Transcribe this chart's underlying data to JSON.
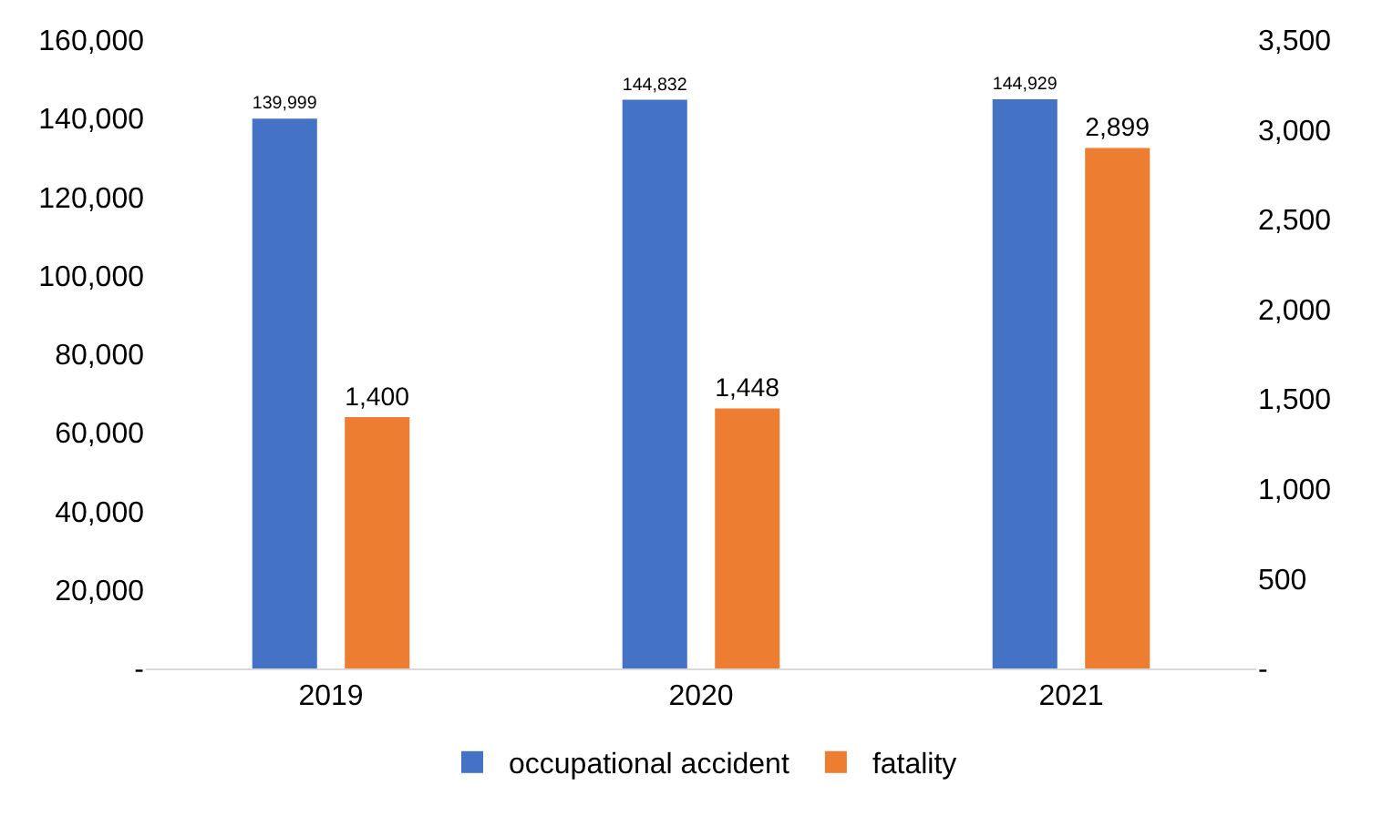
{
  "chart_data": {
    "type": "bar",
    "categories": [
      "2019",
      "2020",
      "2021"
    ],
    "series": [
      {
        "name": "occupational accident",
        "color": "#4472c4",
        "values": [
          139999,
          144832,
          144929
        ],
        "value_labels": [
          "139,999",
          "144,832",
          "144,929"
        ]
      },
      {
        "name": "fatality",
        "color": "#ed7d31",
        "axis": "y2",
        "values": [
          1400,
          1448,
          2899
        ],
        "value_labels": [
          "1,400",
          "1,448",
          "2,899"
        ]
      }
    ],
    "ylim": [
      0,
      160000
    ],
    "yticks": [
      {
        "value": 0,
        "label": "-"
      },
      {
        "value": 20000,
        "label": "20,000"
      },
      {
        "value": 40000,
        "label": "40,000"
      },
      {
        "value": 60000,
        "label": "60,000"
      },
      {
        "value": 80000,
        "label": "80,000"
      },
      {
        "value": 100000,
        "label": "100,000"
      },
      {
        "value": 120000,
        "label": "120,000"
      },
      {
        "value": 140000,
        "label": "140,000"
      },
      {
        "value": 160000,
        "label": "160,000"
      }
    ],
    "y2lim": [
      0,
      3500
    ],
    "y2ticks": [
      {
        "value": 0,
        "label": "-"
      },
      500,
      {
        "value": 1000,
        "label": "1,000"
      },
      {
        "value": 1500,
        "label": "1,500"
      },
      {
        "value": 2000,
        "label": "2,000"
      },
      {
        "value": 2500,
        "label": "2,500"
      },
      {
        "value": 3000,
        "label": "3,000"
      },
      {
        "value": 3500,
        "label": "3,500"
      }
    ],
    "grid": false,
    "legend": "bottom"
  }
}
